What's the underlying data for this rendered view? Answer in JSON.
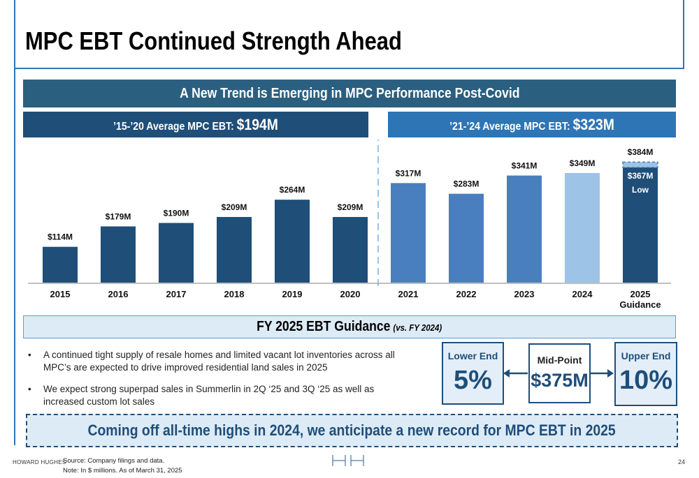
{
  "header": {
    "title": "MPC EBT Continued Strength Ahead"
  },
  "banner": "A New Trend is Emerging in MPC Performance Post-Covid",
  "left_header": {
    "label": "’15-’20 Average MPC EBT: ",
    "value": "$194M"
  },
  "right_header": {
    "label": "’21-’24 Average MPC EBT: ",
    "value": "$323M"
  },
  "chart_data": {
    "type": "bar",
    "categories": [
      "2015",
      "2016",
      "2017",
      "2018",
      "2019",
      "2020",
      "2021",
      "2022",
      "2023",
      "2024",
      "2025 Guidance"
    ],
    "values": [
      114,
      179,
      190,
      209,
      264,
      209,
      317,
      283,
      341,
      349,
      384
    ],
    "value_labels": [
      "$114M",
      "$179M",
      "$190M",
      "$209M",
      "$264M",
      "$209M",
      "$317M",
      "$283M",
      "$341M",
      "$349M",
      "$384M"
    ],
    "colors": [
      "#1f4e79",
      "#1f4e79",
      "#1f4e79",
      "#1f4e79",
      "#1f4e79",
      "#1f4e79",
      "#4a7fbf",
      "#4a7fbf",
      "#4a7fbf",
      "#9dc3e6",
      "#1f4e79"
    ],
    "guidance_low": {
      "value": 367,
      "value_label": "$367M",
      "label": "Low"
    },
    "ylim": [
      0,
      420
    ]
  },
  "guidance": {
    "title": "FY 2025 EBT Guidance",
    "subtitle": "(vs. FY 2024)",
    "bullets": [
      "A continued tight supply of resale homes and limited vacant lot inventories across all MPC’s are expected to drive improved residential land sales in 2025",
      "We expect strong superpad sales in Summerlin in 2Q ‘25 and 3Q ‘25 as well as increased custom lot sales"
    ],
    "boxes": [
      {
        "label": "Lower End",
        "value": "5%"
      },
      {
        "label": "Mid-Point",
        "value": "$375M"
      },
      {
        "label": "Upper End",
        "value": "10%"
      }
    ]
  },
  "callout": "Coming off all-time highs in 2024, we anticipate a new record for MPC EBT in 2025",
  "footer": {
    "company": "HOWARD HUGHES",
    "source": "Source: Company filings and data.",
    "note": "Note: In $ millions. As of March 31, 2025",
    "page": "24"
  }
}
